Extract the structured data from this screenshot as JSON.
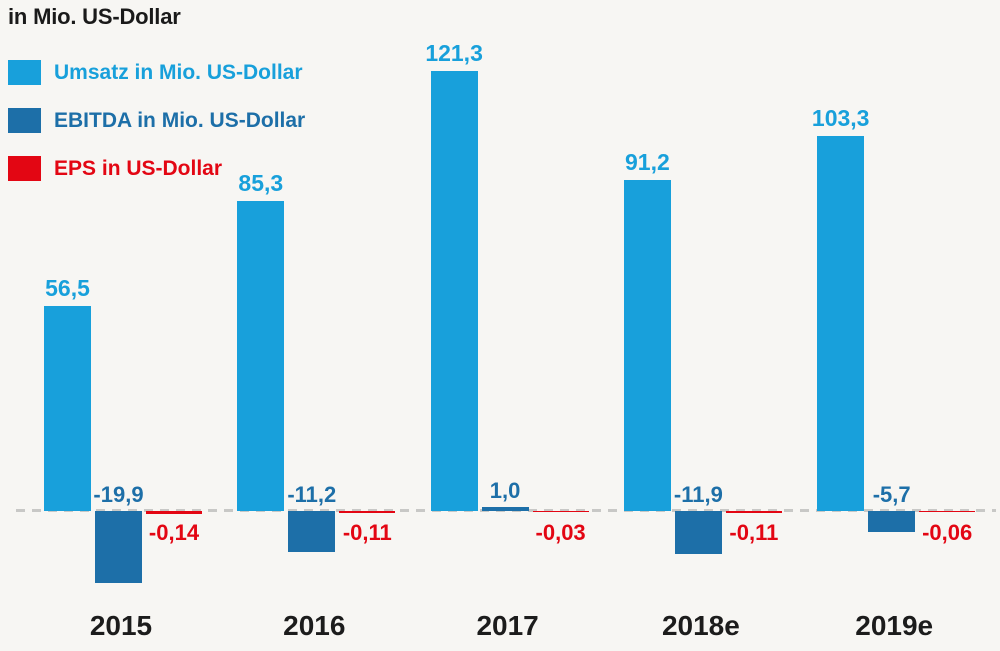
{
  "title": "in Mio. US-Dollar",
  "colors": {
    "umsatz": "#18a0db",
    "ebitda": "#1d6fa8",
    "eps": "#e30613",
    "baseline": "#c8c8c6",
    "background": "#f7f6f3",
    "axis_text": "#1c1c1c"
  },
  "legend": [
    {
      "key": "umsatz",
      "label": "Umsatz in Mio. US-Dollar"
    },
    {
      "key": "ebitda",
      "label": "EBITDA in Mio. US-Dollar"
    },
    {
      "key": "eps",
      "label": "EPS in US-Dollar"
    }
  ],
  "chart_data": {
    "type": "bar",
    "title": "in Mio. US-Dollar",
    "categories": [
      "2015",
      "2016",
      "2017",
      "2018e",
      "2019e"
    ],
    "series": [
      {
        "name": "Umsatz in Mio. US-Dollar",
        "color_key": "umsatz",
        "values": [
          56.5,
          85.3,
          121.3,
          91.2,
          103.3
        ],
        "labels": [
          "56,5",
          "85,3",
          "121,3",
          "91,2",
          "103,3"
        ]
      },
      {
        "name": "EBITDA in Mio. US-Dollar",
        "color_key": "ebitda",
        "values": [
          -19.9,
          -11.2,
          1.0,
          -11.9,
          -5.7
        ],
        "labels": [
          "-19,9",
          "-11,2",
          "1,0",
          "-11,9",
          "-5,7"
        ]
      },
      {
        "name": "EPS in US-Dollar",
        "color_key": "eps",
        "values": [
          -0.14,
          -0.11,
          -0.03,
          -0.11,
          -0.06
        ],
        "labels": [
          "-0,14",
          "-0,11",
          "-0,03",
          "-0,11",
          "-0,06"
        ]
      }
    ],
    "ylim": [
      -25,
      125
    ],
    "grid": false,
    "legend_position": "top-left",
    "zero_baseline": "dashed"
  }
}
